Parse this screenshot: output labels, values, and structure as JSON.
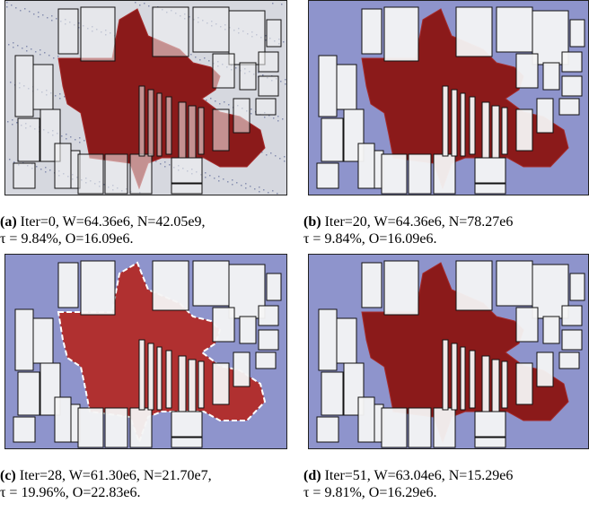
{
  "panels": [
    {
      "label": "(a)",
      "line1": "Iter=0,  W=64.36e6,  N=42.05e9,",
      "line2": "τ = 9.84%, O=16.09e6.",
      "style": "initial"
    },
    {
      "label": "(b)",
      "line1": "Iter=20,  W=64.36e6,  N=78.27e6",
      "line2": "τ = 9.84%, O=16.09e6.",
      "style": "dense"
    },
    {
      "label": "(c)",
      "line1": "Iter=28,  W=61.30e6,  N=21.70e7,",
      "line2": "τ = 19.96%, O=22.83e6.",
      "style": "spread"
    },
    {
      "label": "(d)",
      "line1": "Iter=51,  W=63.04e6,  N=15.29e6",
      "line2": "τ = 9.81%, O=16.29e6.",
      "style": "dense"
    }
  ]
}
